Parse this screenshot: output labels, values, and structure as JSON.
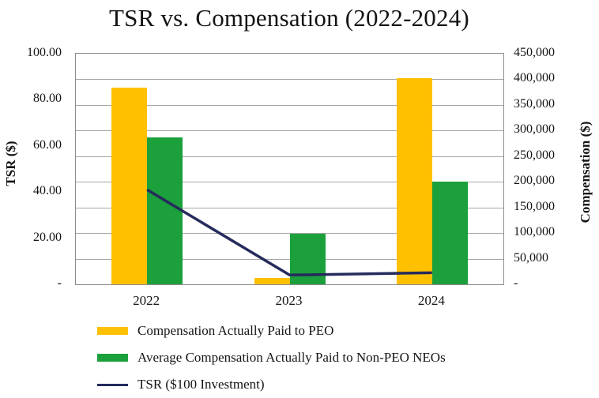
{
  "colors": {
    "text": "#141414",
    "grid": "#a6a6a6",
    "plot_border": "#8c8c8c",
    "peo_bar": "#FFC000",
    "non_peo_bar": "#1CA03C",
    "tsr_line": "#252B5C"
  },
  "chart_data": {
    "type": "bar+line combo (dual axis)",
    "title": "TSR vs. Compensation (2022-2024)",
    "categories": [
      "2022",
      "2023",
      "2024"
    ],
    "series": [
      {
        "name": "Compensation Actually Paid to PEO",
        "type": "bar",
        "axis": "right",
        "color": "#FFC000",
        "values": [
          384000,
          12000,
          402000
        ]
      },
      {
        "name": "Average Compensation Actually Paid to Non-PEO NEOs",
        "type": "bar",
        "axis": "right",
        "color": "#1CA03C",
        "values": [
          286000,
          99000,
          201000
        ]
      },
      {
        "name": "TSR ($100 Investment)",
        "type": "line",
        "axis": "left",
        "color": "#252B5C",
        "values": [
          41,
          4,
          5
        ]
      }
    ],
    "left_axis": {
      "title": "TSR ($)",
      "min": 0,
      "max": 100,
      "tick_labels": [
        "100.00",
        "80.00",
        "60.00",
        "40.00",
        "20.00",
        "-"
      ]
    },
    "right_axis": {
      "title": "Compensation ($)",
      "min": 0,
      "max": 450000,
      "tick_labels": [
        "450,000",
        "400,000",
        "350,000",
        "300,000",
        "250,000",
        "200,000",
        "150,000",
        "100,000",
        "50,000",
        "-"
      ]
    },
    "grid": "horizontal gridlines, 9 intervals (every 50,000 on right axis)",
    "legend_position": "bottom-left"
  }
}
